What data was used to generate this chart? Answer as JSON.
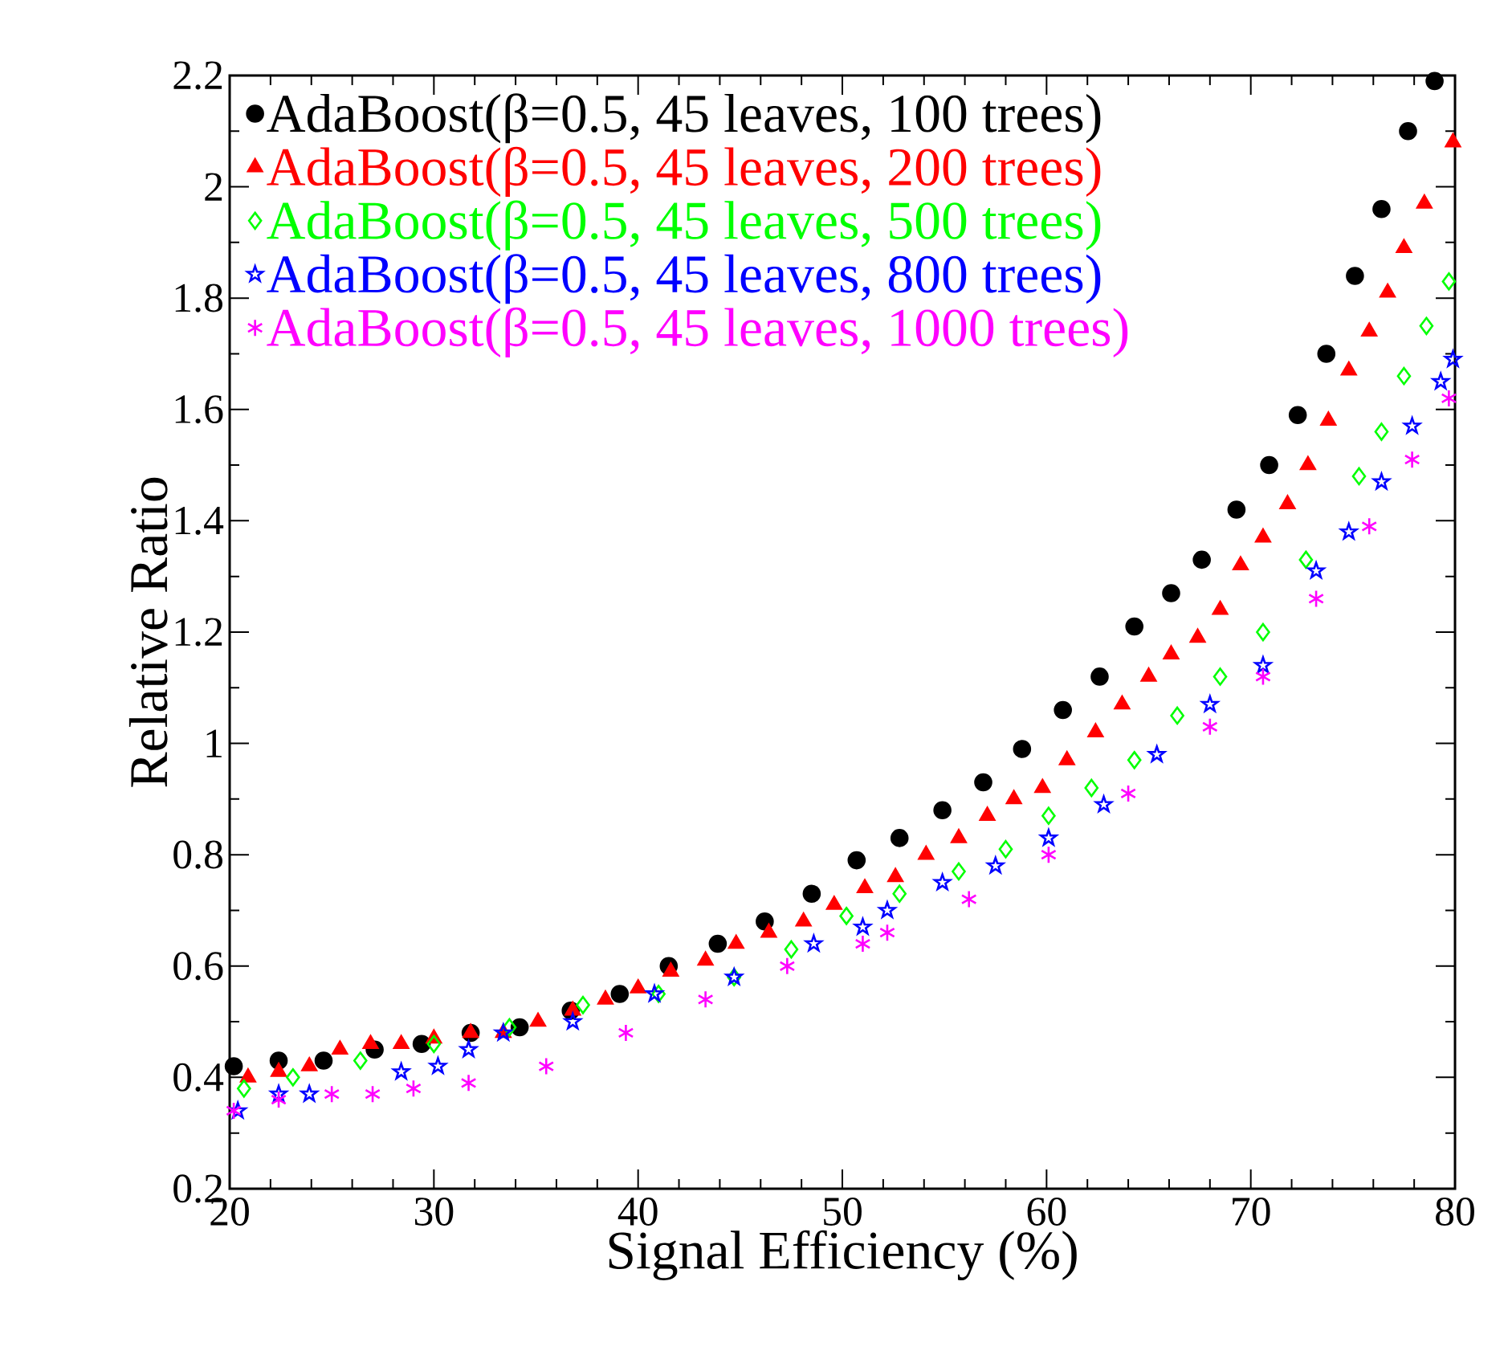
{
  "chart_data": {
    "type": "scatter",
    "xlabel": "Signal Efficiency (%)",
    "ylabel": "Relative Ratio",
    "xlim": [
      20,
      80
    ],
    "ylim": [
      0.2,
      2.2
    ],
    "xticks": [
      20,
      30,
      40,
      50,
      60,
      70,
      80
    ],
    "yticks": [
      0.2,
      0.4,
      0.6,
      0.8,
      1,
      1.2,
      1.4,
      1.6,
      1.8,
      2,
      2.2
    ],
    "grid": false,
    "legend": "top left",
    "series": [
      {
        "name": "AdaBoost(β=0.5, 45 leaves, 100 trees)",
        "color": "#000000",
        "marker": "circle",
        "x": [
          20.2,
          22.4,
          24.6,
          27.1,
          29.4,
          31.8,
          34.2,
          36.7,
          39.1,
          41.5,
          43.9,
          46.2,
          48.5,
          50.7,
          52.8,
          54.9,
          56.9,
          58.8,
          60.8,
          62.6,
          64.3,
          66.1,
          67.6,
          69.3,
          70.9,
          72.3,
          73.7,
          75.1,
          76.4,
          77.7,
          79.0
        ],
        "values": [
          0.42,
          0.43,
          0.43,
          0.45,
          0.46,
          0.48,
          0.49,
          0.52,
          0.55,
          0.6,
          0.64,
          0.68,
          0.73,
          0.79,
          0.83,
          0.88,
          0.93,
          0.99,
          1.06,
          1.12,
          1.21,
          1.27,
          1.33,
          1.42,
          1.5,
          1.59,
          1.7,
          1.84,
          1.96,
          2.1,
          2.19
        ]
      },
      {
        "name": "AdaBoost(β=0.5, 45 leaves, 200 trees)",
        "color": "#ff0000",
        "marker": "triangle",
        "x": [
          20.9,
          22.4,
          23.9,
          25.4,
          26.9,
          28.4,
          30.0,
          31.8,
          33.4,
          35.1,
          36.8,
          38.4,
          40.0,
          41.6,
          43.3,
          44.8,
          46.4,
          48.1,
          49.6,
          51.1,
          52.6,
          54.1,
          55.7,
          57.1,
          58.4,
          59.8,
          61.0,
          62.4,
          63.7,
          65.0,
          66.1,
          67.4,
          68.5,
          69.5,
          70.6,
          71.8,
          72.8,
          73.8,
          74.8,
          75.8,
          76.7,
          77.5,
          78.5,
          79.9
        ],
        "values": [
          0.4,
          0.41,
          0.42,
          0.45,
          0.46,
          0.46,
          0.47,
          0.48,
          0.48,
          0.5,
          0.52,
          0.54,
          0.56,
          0.59,
          0.61,
          0.64,
          0.66,
          0.68,
          0.71,
          0.74,
          0.76,
          0.8,
          0.83,
          0.87,
          0.9,
          0.92,
          0.97,
          1.02,
          1.07,
          1.12,
          1.16,
          1.19,
          1.24,
          1.32,
          1.37,
          1.43,
          1.5,
          1.58,
          1.67,
          1.74,
          1.81,
          1.89,
          1.97,
          2.08
        ]
      },
      {
        "name": "AdaBoost(β=0.5, 45 leaves, 500 trees)",
        "color": "#00ff00",
        "marker": "diamond",
        "x": [
          20.7,
          23.1,
          26.4,
          30.0,
          33.7,
          37.3,
          41.0,
          44.7,
          47.5,
          50.2,
          52.8,
          55.7,
          58.0,
          60.1,
          62.2,
          64.3,
          66.4,
          68.5,
          70.6,
          72.7,
          75.3,
          76.4,
          77.5,
          78.6,
          79.7
        ],
        "values": [
          0.38,
          0.4,
          0.43,
          0.46,
          0.49,
          0.53,
          0.55,
          0.58,
          0.63,
          0.69,
          0.73,
          0.77,
          0.81,
          0.87,
          0.92,
          0.97,
          1.05,
          1.12,
          1.2,
          1.33,
          1.48,
          1.56,
          1.66,
          1.75,
          1.83
        ]
      },
      {
        "name": "AdaBoost(β=0.5, 45 leaves, 800 trees)",
        "color": "#0000ff",
        "marker": "star",
        "x": [
          20.4,
          22.4,
          23.9,
          28.4,
          30.2,
          31.7,
          33.4,
          36.8,
          40.8,
          44.7,
          48.6,
          51.0,
          52.2,
          54.9,
          57.5,
          60.1,
          62.8,
          65.4,
          68.0,
          70.6,
          73.2,
          74.8,
          76.4,
          77.9,
          79.3,
          79.9
        ],
        "values": [
          0.34,
          0.37,
          0.37,
          0.41,
          0.42,
          0.45,
          0.48,
          0.5,
          0.55,
          0.58,
          0.64,
          0.67,
          0.7,
          0.75,
          0.78,
          0.83,
          0.89,
          0.98,
          1.07,
          1.14,
          1.31,
          1.38,
          1.47,
          1.57,
          1.65,
          1.69
        ]
      },
      {
        "name": "AdaBoost(β=0.5, 45 leaves, 1000 trees)",
        "color": "#ff00ff",
        "marker": "cross",
        "x": [
          20.2,
          22.4,
          25.0,
          27.0,
          29.0,
          31.7,
          35.5,
          39.4,
          43.3,
          47.3,
          51.0,
          52.2,
          56.2,
          60.1,
          64.0,
          68.0,
          70.6,
          73.2,
          75.8,
          77.9,
          79.7
        ],
        "values": [
          0.34,
          0.36,
          0.37,
          0.37,
          0.38,
          0.39,
          0.42,
          0.48,
          0.54,
          0.6,
          0.64,
          0.66,
          0.72,
          0.8,
          0.91,
          1.03,
          1.12,
          1.26,
          1.39,
          1.51,
          1.62
        ]
      }
    ]
  }
}
